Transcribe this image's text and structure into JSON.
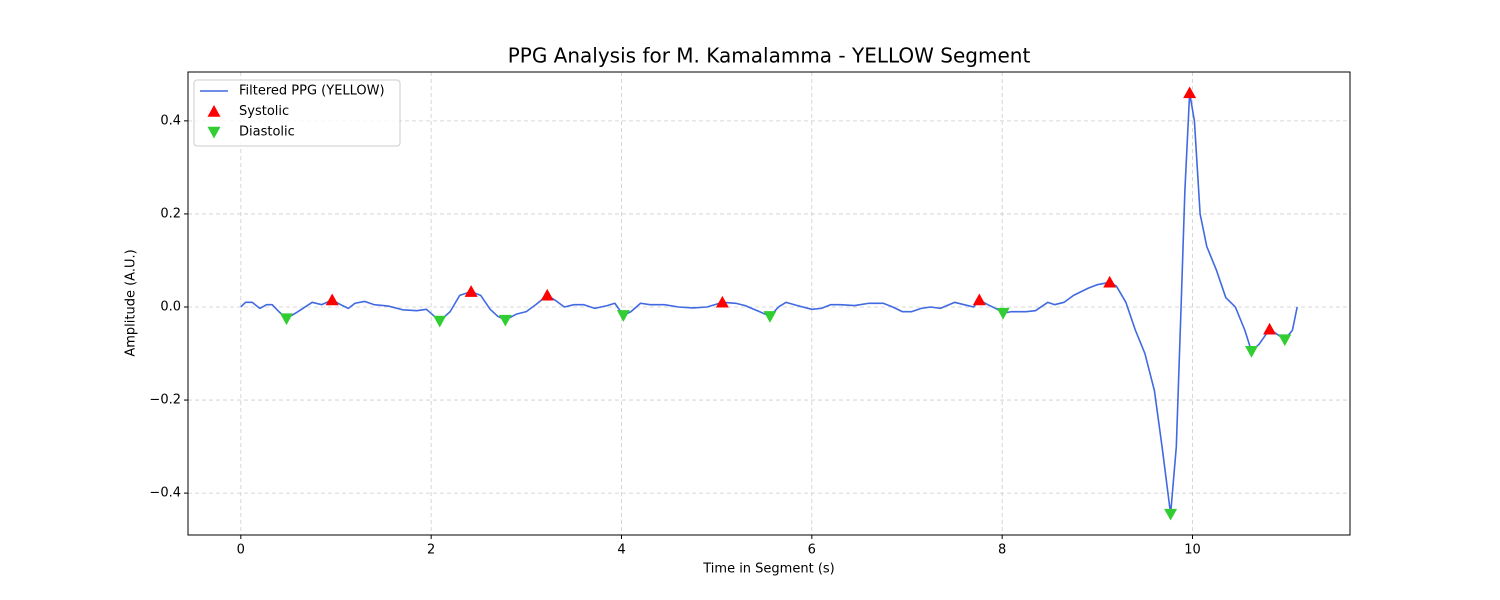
{
  "chart_data": {
    "type": "line",
    "title": "PPG Analysis for M. Kamalamma - YELLOW Segment",
    "xlabel": "Time in Segment (s)",
    "ylabel": "Amplitude (A.U.)",
    "xlim": [
      -0.555,
      11.655
    ],
    "ylim": [
      -0.49,
      0.505
    ],
    "xticks": [
      0,
      2,
      4,
      6,
      8,
      10
    ],
    "yticks": [
      {
        "value": -0.4,
        "label": "−0.4"
      },
      {
        "value": -0.2,
        "label": "−0.2"
      },
      {
        "value": 0,
        "label": "0.0"
      },
      0.2,
      0.4
    ],
    "grid": true,
    "legend": "upper left",
    "series": [
      {
        "name": "Filtered PPG (YELLOW)",
        "type": "line",
        "color": "#4169e1",
        "x": [
          0,
          0.05,
          0.12,
          0.2,
          0.27,
          0.33,
          0.4,
          0.48,
          0.6,
          0.75,
          0.85,
          0.96,
          1.05,
          1.13,
          1.2,
          1.3,
          1.4,
          1.55,
          1.7,
          1.85,
          1.95,
          2.09,
          2.2,
          2.3,
          2.42,
          2.52,
          2.62,
          2.7,
          2.78,
          2.9,
          3.0,
          3.1,
          3.22,
          3.3,
          3.4,
          3.5,
          3.6,
          3.72,
          3.85,
          3.93,
          4.02,
          4.1,
          4.2,
          4.3,
          4.45,
          4.6,
          4.75,
          4.9,
          5.06,
          5.2,
          5.3,
          5.45,
          5.56,
          5.65,
          5.73,
          5.85,
          6.0,
          6.1,
          6.2,
          6.3,
          6.45,
          6.6,
          6.75,
          6.85,
          6.95,
          7.05,
          7.15,
          7.25,
          7.35,
          7.5,
          7.6,
          7.7,
          7.76,
          7.85,
          7.95,
          8.01,
          8.1,
          8.25,
          8.35,
          8.48,
          8.55,
          8.65,
          8.75,
          8.9,
          9.0,
          9.13,
          9.2,
          9.3,
          9.4,
          9.5,
          9.6,
          9.68,
          9.77,
          9.83,
          9.88,
          9.92,
          9.97,
          10.02,
          10.08,
          10.15,
          10.25,
          10.35,
          10.45,
          10.55,
          10.62,
          10.7,
          10.81,
          10.9,
          10.97,
          11.05,
          11.1
        ],
        "values": [
          0,
          0.01,
          0.01,
          -0.003,
          0.005,
          0.005,
          -0.01,
          -0.025,
          -0.01,
          0.01,
          0.005,
          0.015,
          0.005,
          -0.003,
          0.008,
          0.012,
          0.005,
          0.002,
          -0.006,
          -0.008,
          -0.005,
          -0.03,
          -0.01,
          0.025,
          0.033,
          0.025,
          -0.005,
          -0.02,
          -0.028,
          -0.015,
          -0.01,
          0.005,
          0.025,
          0.015,
          0,
          0.005,
          0.005,
          -0.003,
          0.003,
          0.008,
          -0.018,
          -0.01,
          0.008,
          0.005,
          0.005,
          0,
          -0.002,
          0,
          0.01,
          0.008,
          0.003,
          -0.01,
          -0.02,
          0,
          0.01,
          0.003,
          -0.005,
          -0.003,
          0.005,
          0.005,
          0.003,
          0.008,
          0.008,
          0,
          -0.01,
          -0.01,
          -0.003,
          0,
          -0.003,
          0.01,
          0.005,
          0,
          0.015,
          0.005,
          -0.005,
          -0.013,
          -0.01,
          -0.01,
          -0.008,
          0.01,
          0.005,
          0.01,
          0.025,
          0.04,
          0.048,
          0.053,
          0.045,
          0.01,
          -0.05,
          -0.1,
          -0.18,
          -0.3,
          -0.445,
          -0.3,
          0,
          0.25,
          0.46,
          0.4,
          0.2,
          0.13,
          0.08,
          0.02,
          0,
          -0.05,
          -0.095,
          -0.08,
          -0.048,
          -0.06,
          -0.07,
          -0.05,
          0
        ]
      },
      {
        "name": "Systolic",
        "type": "scatter",
        "marker": "^",
        "color": "#ff0000",
        "x": [
          0.96,
          2.42,
          3.22,
          5.06,
          7.76,
          9.13,
          9.97,
          10.81
        ],
        "values": [
          0.015,
          0.033,
          0.025,
          0.01,
          0.015,
          0.053,
          0.46,
          -0.048
        ]
      },
      {
        "name": "Diastolic",
        "type": "scatter",
        "marker": "v",
        "color": "#32cd32",
        "x": [
          0.48,
          2.09,
          2.78,
          4.02,
          5.56,
          8.01,
          9.77,
          10.62,
          10.97
        ],
        "values": [
          -0.025,
          -0.03,
          -0.028,
          -0.018,
          -0.02,
          -0.013,
          -0.445,
          -0.095,
          -0.07
        ]
      }
    ]
  }
}
